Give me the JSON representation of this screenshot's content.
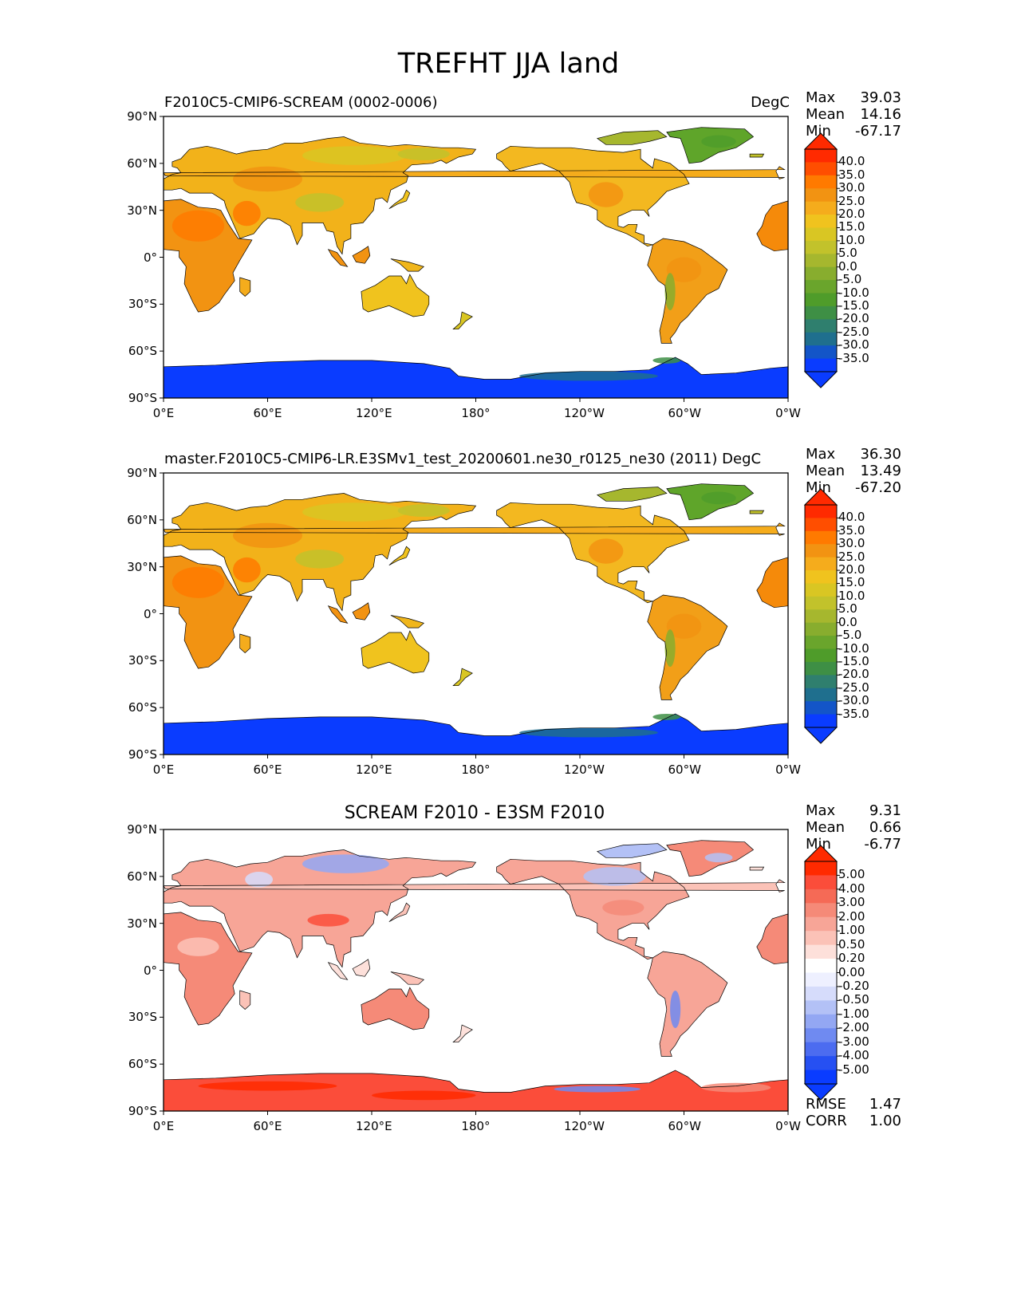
{
  "figure_title": "TREFHT JJA land",
  "panels": [
    {
      "id": "test",
      "title_left": "F2010C5-CMIP6-SCREAM (0002-0006)",
      "title_center": "",
      "units": "DegC",
      "stats": [
        {
          "label": "Max",
          "value": "39.03"
        },
        {
          "label": "Mean",
          "value": "14.16"
        },
        {
          "label": "Min",
          "value": "-67.17"
        }
      ],
      "colorbar": {
        "type": "absolute",
        "labels": [
          "40.0",
          "35.0",
          "30.0",
          "25.0",
          "20.0",
          "15.0",
          "10.0",
          "5.0",
          "0.0",
          "-5.0",
          "-10.0",
          "-15.0",
          "-20.0",
          "-25.0",
          "-30.0",
          "-35.0"
        ],
        "colors": [
          "#ff2a00",
          "#ff4e00",
          "#ff7a00",
          "#f29312",
          "#f5ac1c",
          "#f0c31e",
          "#d9c623",
          "#c2c22b",
          "#a6b72e",
          "#88ad2e",
          "#6aa52c",
          "#4f9c2a",
          "#3e8f45",
          "#2f7f6e",
          "#1f6f8e",
          "#1355c8",
          "#0a3cff"
        ],
        "extend_top": "#ff2a00",
        "extend_bottom": "#0a3cff"
      },
      "extra_stats": []
    },
    {
      "id": "reference",
      "title_left": "master.F2010C5-CMIP6-LR.E3SMv1_test_20200601.ne30_r0125_ne30 (2011)",
      "title_center": "",
      "units": "DegC",
      "stats": [
        {
          "label": "Max",
          "value": "36.30"
        },
        {
          "label": "Mean",
          "value": "13.49"
        },
        {
          "label": "Min",
          "value": "-67.20"
        }
      ],
      "colorbar": {
        "type": "absolute",
        "labels": [
          "40.0",
          "35.0",
          "30.0",
          "25.0",
          "20.0",
          "15.0",
          "10.0",
          "5.0",
          "0.0",
          "-5.0",
          "-10.0",
          "-15.0",
          "-20.0",
          "-25.0",
          "-30.0",
          "-35.0"
        ],
        "colors": [
          "#ff2a00",
          "#ff4e00",
          "#ff7a00",
          "#f29312",
          "#f5ac1c",
          "#f0c31e",
          "#d9c623",
          "#c2c22b",
          "#a6b72e",
          "#88ad2e",
          "#6aa52c",
          "#4f9c2a",
          "#3e8f45",
          "#2f7f6e",
          "#1f6f8e",
          "#1355c8",
          "#0a3cff"
        ],
        "extend_top": "#ff2a00",
        "extend_bottom": "#0a3cff"
      },
      "extra_stats": []
    },
    {
      "id": "difference",
      "title_left": "",
      "title_center": "SCREAM F2010 - E3SM F2010",
      "units": "",
      "stats": [
        {
          "label": "Max",
          "value": "9.31"
        },
        {
          "label": "Mean",
          "value": "0.66"
        },
        {
          "label": "Min",
          "value": "-6.77"
        }
      ],
      "colorbar": {
        "type": "difference",
        "labels": [
          "5.00",
          "4.00",
          "3.00",
          "2.00",
          "1.00",
          "0.50",
          "0.20",
          "0.00",
          "-0.20",
          "-0.50",
          "-1.00",
          "-2.00",
          "-3.00",
          "-4.00",
          "-5.00"
        ],
        "colors": [
          "#ff2a00",
          "#fb4d3a",
          "#f56a56",
          "#f58a78",
          "#f7a597",
          "#fbc2b7",
          "#fde0da",
          "#ffffff",
          "#eef0ff",
          "#d6dcfb",
          "#b3c1f6",
          "#93a7f3",
          "#6f8af1",
          "#4c6cf0",
          "#2650f2",
          "#0a3cff"
        ],
        "extend_top": "#ff2a00",
        "extend_bottom": "#0a3cff"
      },
      "extra_stats": [
        {
          "label": "RMSE",
          "value": "1.47"
        },
        {
          "label": "CORR",
          "value": "1.00"
        }
      ]
    }
  ],
  "axes": {
    "x_ticks": [
      "0°E",
      "60°E",
      "120°E",
      "180°",
      "120°W",
      "60°W",
      "0°W"
    ],
    "y_ticks": [
      "90°N",
      "60°N",
      "30°N",
      "0°",
      "30°S",
      "60°S",
      "90°S"
    ]
  },
  "colors": {
    "ocean": "#ffffff",
    "coastline": "#000000"
  }
}
